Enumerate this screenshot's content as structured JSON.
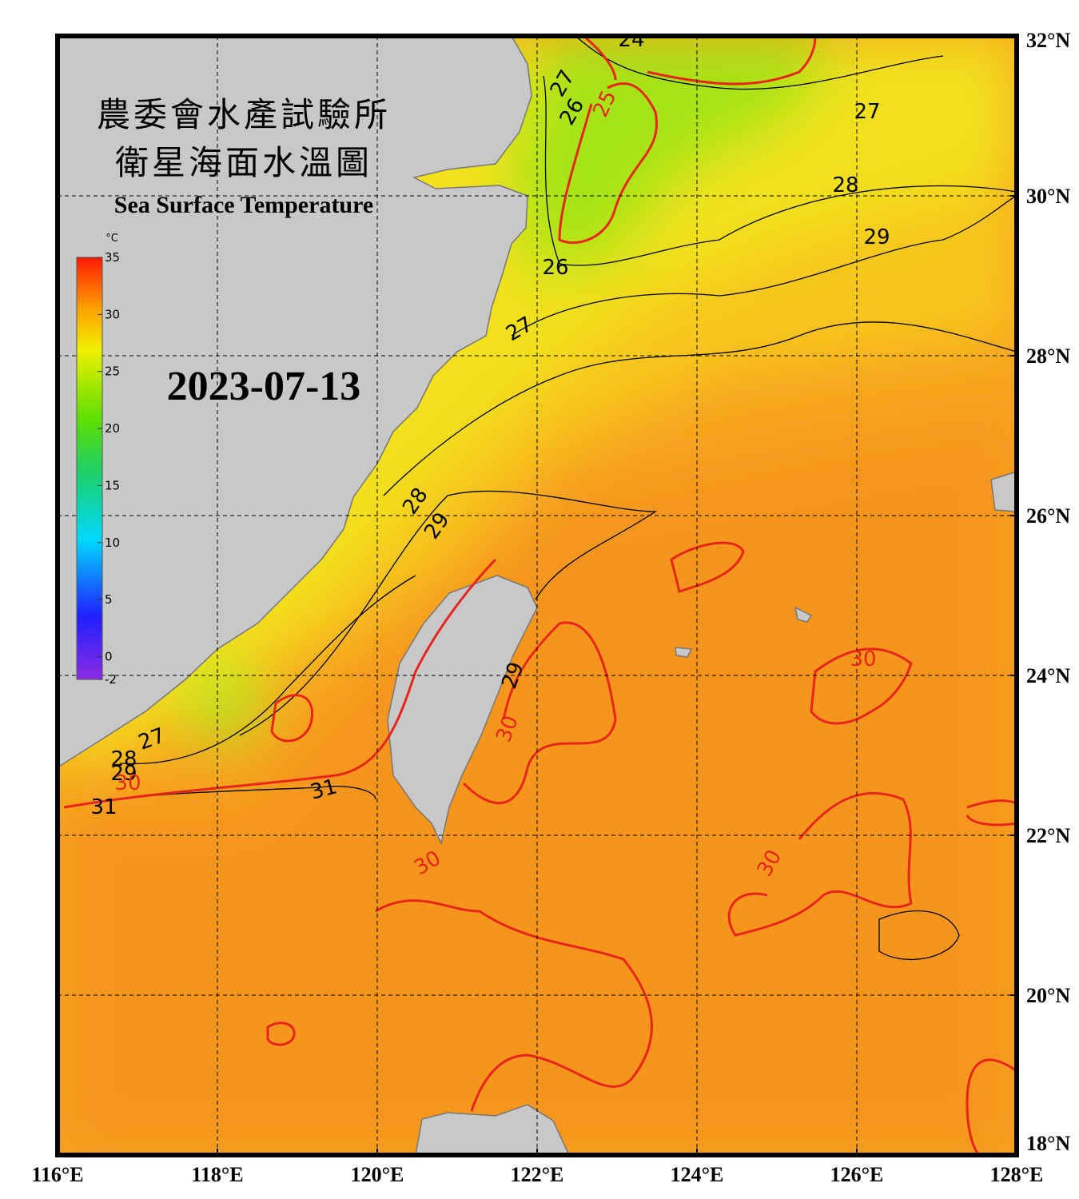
{
  "header": {
    "title_zh": "農委會水產試驗所",
    "subtitle_zh": "衛星海面水溫圖",
    "title_en": "Sea Surface Temperature"
  },
  "date": "2023-07-13",
  "colorbar": {
    "unit": "°C",
    "clim": [
      -2,
      35
    ],
    "ticks": [
      35,
      30,
      25,
      20,
      15,
      10,
      5,
      0,
      -2
    ]
  },
  "map": {
    "xlim": [
      116,
      128
    ],
    "ylim": [
      18,
      32
    ],
    "xticks": [
      {
        "value": 116,
        "label": "116°E"
      },
      {
        "value": 118,
        "label": "118°E"
      },
      {
        "value": 120,
        "label": "120°E"
      },
      {
        "value": 122,
        "label": "122°E"
      },
      {
        "value": 124,
        "label": "124°E"
      },
      {
        "value": 126,
        "label": "126°E"
      },
      {
        "value": 128,
        "label": "128°E"
      }
    ],
    "yticks": [
      {
        "value": 32,
        "label": "32°N"
      },
      {
        "value": 30,
        "label": "30°N"
      },
      {
        "value": 28,
        "label": "28°N"
      },
      {
        "value": 26,
        "label": "26°N"
      },
      {
        "value": 24,
        "label": "24°N"
      },
      {
        "value": 22,
        "label": "22°N"
      },
      {
        "value": 20,
        "label": "20°N"
      },
      {
        "value": 18,
        "label": "18°N"
      }
    ],
    "grid": true,
    "contour_labels": [
      24,
      27,
      26,
      25,
      27,
      28,
      29,
      26,
      27,
      28,
      29,
      29,
      30,
      27,
      28,
      29,
      30,
      31,
      31,
      30,
      30,
      30
    ]
  }
}
